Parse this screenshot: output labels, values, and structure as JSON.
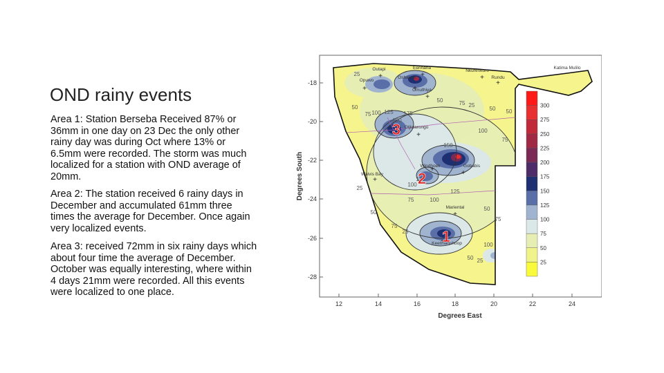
{
  "slide": {
    "title": "OND rainy events",
    "paragraphs": [
      "Area 1: Station Berseba Received 87% or 36mm in one day on 23 Dec the only other rainy day was during Oct where 13% or 6.5mm were recorded. The storm was much localized for a station with OND average of 20mm.",
      "Area 2: The station received 6 rainy days in December and accumulated 61mm three times the average for December. Once again very localized events.",
      "Area 3: received 72mm in six rainy days which about four time the average of December. October was equally interesting, where within 4 days 21mm were recorded. All this events were localized to one place."
    ]
  },
  "map": {
    "xlabel": "Degrees East",
    "ylabel": "Degrees South",
    "x_ticks": [
      "12",
      "14",
      "16",
      "18",
      "20",
      "22",
      "24"
    ],
    "y_ticks": [
      "-18",
      "-20",
      "-22",
      "-24",
      "-26",
      "-28"
    ],
    "towns": [
      {
        "name": "Outapi"
      },
      {
        "name": "Eenhana"
      },
      {
        "name": "Opuwo"
      },
      {
        "name": "Oshakati"
      },
      {
        "name": "Omuthiya"
      },
      {
        "name": "Nkurenkuru"
      },
      {
        "name": "Rundu"
      },
      {
        "name": "Katima Mulilo"
      },
      {
        "name": "Otjiwarongo"
      },
      {
        "name": "Windhoek"
      },
      {
        "name": "Gobabis"
      },
      {
        "name": "Walvis Bay"
      },
      {
        "name": "Mariental"
      },
      {
        "name": "Keetmanshoop"
      }
    ],
    "area_markers": [
      "3",
      "2",
      "1"
    ],
    "contour_labels": [
      "25",
      "50",
      "75",
      "100",
      "125",
      "150",
      "175",
      "25",
      "50",
      "75",
      "100",
      "125",
      "50",
      "75",
      "25",
      "50",
      "75",
      "100",
      "150",
      "50",
      "25",
      "75",
      "100",
      "125",
      "50",
      "100",
      "25",
      "50",
      "75"
    ],
    "legend": {
      "ticks": [
        "300",
        "275",
        "250",
        "225",
        "200",
        "175",
        "150",
        "125",
        "100",
        "75",
        "50",
        "25"
      ],
      "colors": [
        "#ff1a1a",
        "#e83030",
        "#c02a3a",
        "#a02a45",
        "#7a2a55",
        "#4e2c6a",
        "#1e2f72",
        "#5a6fa8",
        "#a0b4d0",
        "#dce8e8",
        "#e6eeb4",
        "#f0f28a",
        "#fafa3c"
      ]
    },
    "colors": {
      "marker": "#e02020",
      "station": "#333333",
      "frame": "#666666"
    }
  }
}
